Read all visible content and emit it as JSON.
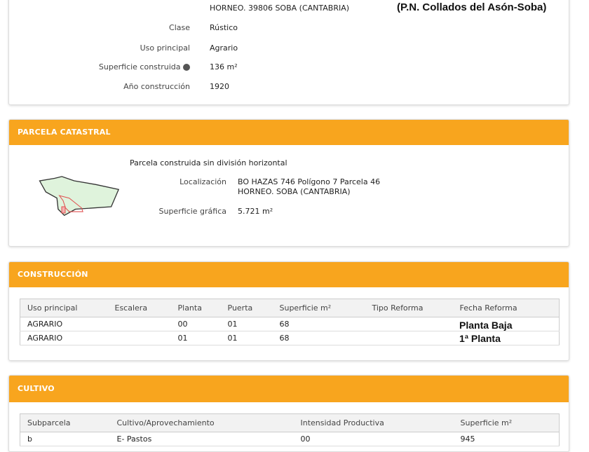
{
  "inmueble": {
    "address_line2": "HORNEO. 39806 SOBA (CANTABRIA)",
    "annotation": "(P.N. Collados del Asón-Soba)",
    "fields": [
      {
        "label": "Clase",
        "value": "Rústico"
      },
      {
        "label": "Uso principal",
        "value": "Agrario"
      },
      {
        "label": "Superficie construida",
        "value": "136 m²"
      },
      {
        "label": "Año construcción",
        "value": "1920"
      }
    ]
  },
  "parcela": {
    "title": "PARCELA CATASTRAL",
    "subtitle": "Parcela construida sin división horizontal",
    "loc_label": "Localización",
    "loc_line1": "BO HAZAS 746 Polígono 7 Parcela 46",
    "loc_line2": "HORNEO. SOBA (CANTABRIA)",
    "sup_label": "Superficie gráfica",
    "sup_value": "5.721 m²"
  },
  "construccion": {
    "title": "CONSTRUCCIÓN",
    "headers": [
      "Uso principal",
      "Escalera",
      "Planta",
      "Puerta",
      "Superficie m²",
      "Tipo Reforma",
      "Fecha Reforma"
    ],
    "rows": [
      [
        "AGRARIO",
        "",
        "00",
        "01",
        "68",
        "",
        ""
      ],
      [
        "AGRARIO",
        "",
        "01",
        "01",
        "68",
        "",
        ""
      ]
    ],
    "annotations": [
      "Planta Baja",
      "1ª Planta"
    ]
  },
  "cultivo": {
    "title": "CULTIVO",
    "headers": [
      "Subparcela",
      "Cultivo/Aprovechamiento",
      "Intensidad Productiva",
      "Superficie m²"
    ],
    "rows": [
      [
        "b",
        "E- Pastos",
        "00",
        "945"
      ]
    ]
  },
  "colors": {
    "header": "#f8a51e"
  }
}
